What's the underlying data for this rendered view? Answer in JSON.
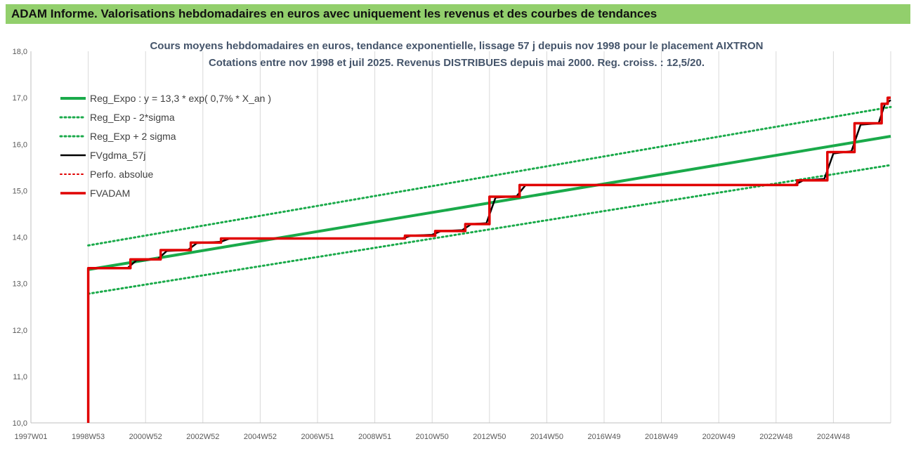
{
  "header": {
    "title": "ADAM Informe. Valorisations hebdomadaires en euros avec uniquement les revenus et des courbes de tendances"
  },
  "chart_data": {
    "type": "line",
    "title_line1": "Cours moyens hebdomadaires en euros, tendance exponentielle, lissage 57 j depuis nov 1998  pour le placement AIXTRON",
    "title_line2": "Cotations entre nov 1998 et juil 2025.  Revenus DISTRIBUES depuis mai 2000. Reg. croiss. : 12,5/20.",
    "x_ticks": [
      "1997W01",
      "1998W53",
      "2000W52",
      "2002W52",
      "2004W52",
      "2006W51",
      "2008W51",
      "2010W50",
      "2012W50",
      "2014W50",
      "2016W49",
      "2018W49",
      "2020W49",
      "2022W48",
      "2024W48"
    ],
    "x_range": [
      1997.0,
      2025.5
    ],
    "y_ticks": [
      "10,0",
      "11,0",
      "12,0",
      "13,0",
      "14,0",
      "15,0",
      "16,0",
      "17,0",
      "18,0"
    ],
    "ylim": [
      10,
      18
    ],
    "grid": "vertical",
    "legend_position": "top-left",
    "series": [
      {
        "name": "Reg_Expo : y = 13,3 * exp( 0,7% *  X_an )",
        "color": "#1aaa4a",
        "style": "solid",
        "points": [
          [
            1998.9,
            13.3
          ],
          [
            2025.5,
            16.17
          ]
        ]
      },
      {
        "name": "Reg_Exp - 2*sigma",
        "color": "#1aaa4a",
        "style": "dotted",
        "points": [
          [
            1998.9,
            12.78
          ],
          [
            2025.5,
            15.55
          ]
        ]
      },
      {
        "name": "Reg_Exp + 2 sigma",
        "color": "#1aaa4a",
        "style": "dotted",
        "points": [
          [
            1998.9,
            13.82
          ],
          [
            2025.5,
            16.8
          ]
        ]
      },
      {
        "name": "FVgdma_57j",
        "color": "#000000",
        "style": "solid",
        "points": [
          [
            1998.9,
            13.33
          ],
          [
            2000.2,
            13.33
          ],
          [
            2000.5,
            13.5
          ],
          [
            2001.2,
            13.52
          ],
          [
            2001.5,
            13.7
          ],
          [
            2002.2,
            13.72
          ],
          [
            2002.5,
            13.87
          ],
          [
            2003.3,
            13.9
          ],
          [
            2003.6,
            13.97
          ],
          [
            2009.3,
            13.97
          ],
          [
            2009.6,
            14.03
          ],
          [
            2010.3,
            14.05
          ],
          [
            2010.6,
            14.13
          ],
          [
            2011.3,
            14.15
          ],
          [
            2011.6,
            14.28
          ],
          [
            2012.1,
            14.3
          ],
          [
            2012.4,
            14.85
          ],
          [
            2013.1,
            14.88
          ],
          [
            2013.4,
            15.12
          ],
          [
            2022.3,
            15.12
          ],
          [
            2022.6,
            15.22
          ],
          [
            2023.3,
            15.25
          ],
          [
            2023.6,
            15.8
          ],
          [
            2024.2,
            15.85
          ],
          [
            2024.5,
            16.42
          ],
          [
            2025.1,
            16.45
          ],
          [
            2025.3,
            16.85
          ],
          [
            2025.5,
            16.95
          ]
        ]
      },
      {
        "name": "Perfo. absolue",
        "color": "#e00000",
        "style": "dotted",
        "points": []
      },
      {
        "name": "FVADAM",
        "color": "#e00000",
        "style": "solid",
        "points": [
          [
            1998.9,
            10.0
          ],
          [
            1998.9,
            13.33
          ],
          [
            2000.3,
            13.33
          ],
          [
            2000.3,
            13.52
          ],
          [
            2001.3,
            13.52
          ],
          [
            2001.3,
            13.72
          ],
          [
            2002.3,
            13.72
          ],
          [
            2002.3,
            13.88
          ],
          [
            2003.3,
            13.88
          ],
          [
            2003.3,
            13.97
          ],
          [
            2009.4,
            13.97
          ],
          [
            2009.4,
            14.03
          ],
          [
            2010.4,
            14.03
          ],
          [
            2010.4,
            14.13
          ],
          [
            2011.4,
            14.13
          ],
          [
            2011.4,
            14.28
          ],
          [
            2012.2,
            14.28
          ],
          [
            2012.2,
            14.87
          ],
          [
            2013.2,
            14.87
          ],
          [
            2013.2,
            15.12
          ],
          [
            2022.4,
            15.12
          ],
          [
            2022.4,
            15.22
          ],
          [
            2023.4,
            15.22
          ],
          [
            2023.4,
            15.83
          ],
          [
            2024.3,
            15.83
          ],
          [
            2024.3,
            16.45
          ],
          [
            2025.2,
            16.45
          ],
          [
            2025.2,
            16.87
          ],
          [
            2025.4,
            16.87
          ],
          [
            2025.4,
            17.0
          ],
          [
            2025.5,
            17.0
          ]
        ]
      }
    ]
  }
}
